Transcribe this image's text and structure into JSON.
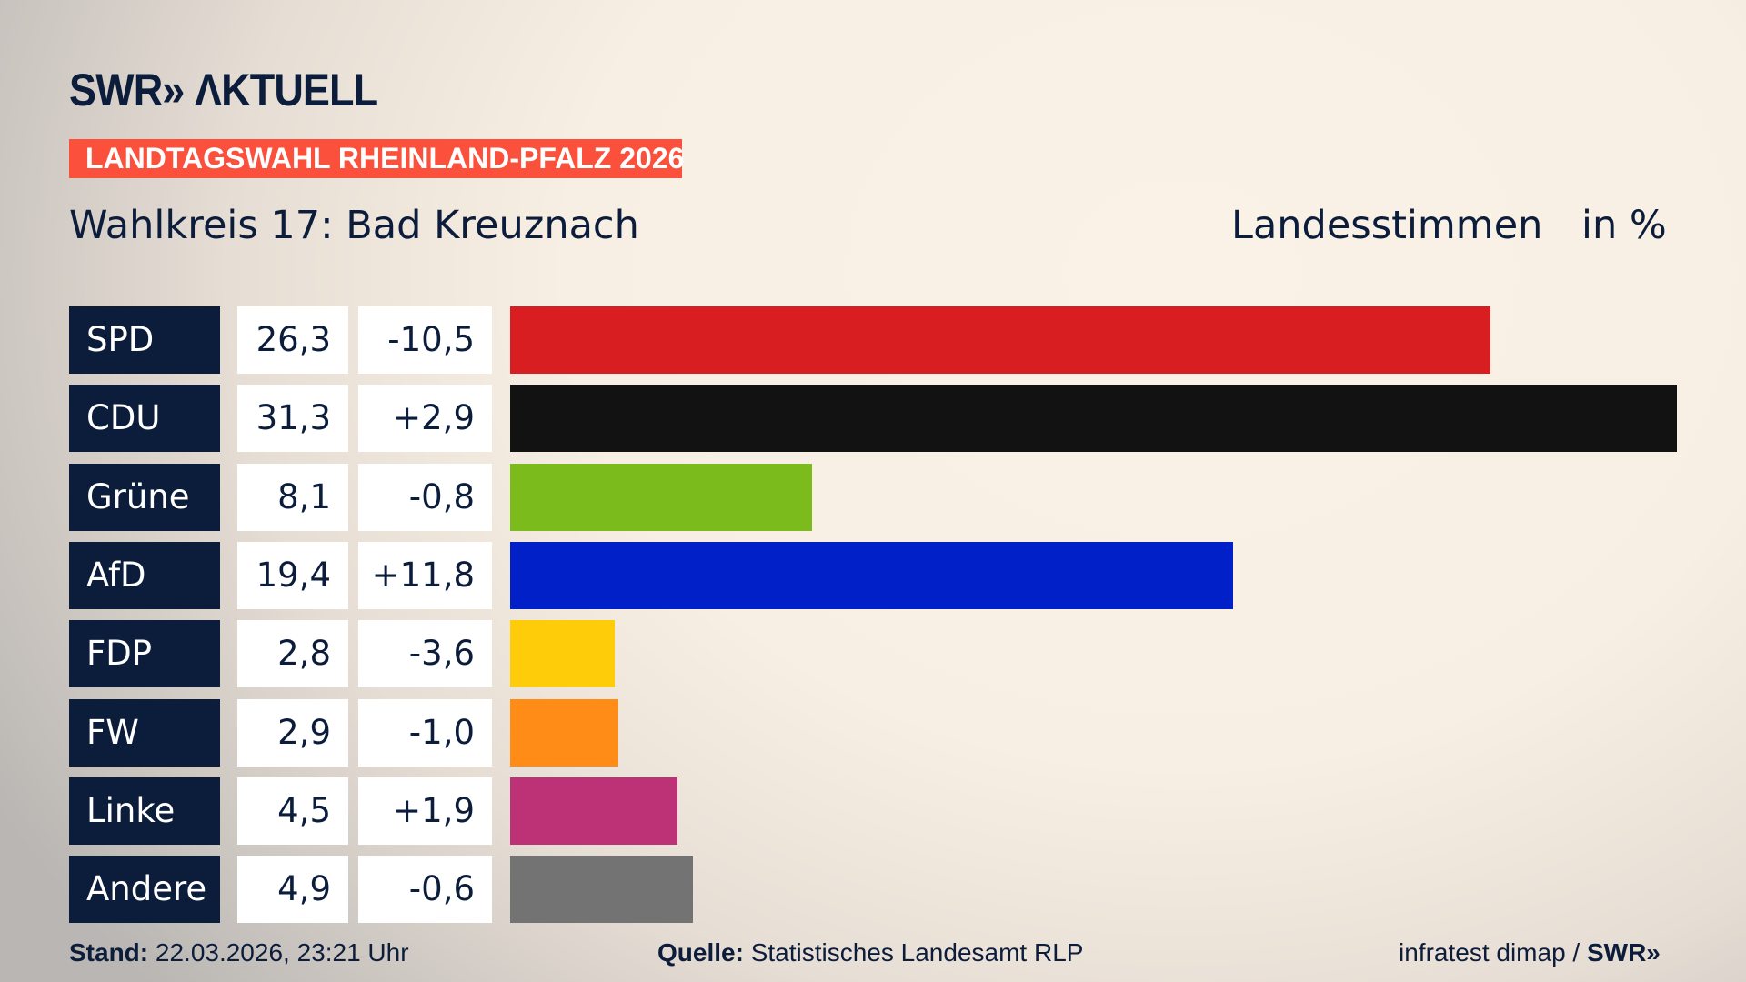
{
  "brand": {
    "logo": "SWR» AKTUELL",
    "footer_logo": "SWR»"
  },
  "badge": "LANDTAGSWAHL RHEINLAND-PFALZ 2026",
  "title": "Wahlkreis 17: Bad Kreuznach",
  "subtitle": "Landesstimmen",
  "unit": "in %",
  "chart_data": {
    "type": "bar",
    "orientation": "horizontal",
    "xlim": [
      0,
      31.3
    ],
    "categories": [
      "SPD",
      "CDU",
      "Grüne",
      "AfD",
      "FDP",
      "FW",
      "Linke",
      "Andere"
    ],
    "values": [
      26.3,
      31.3,
      8.1,
      19.4,
      2.8,
      2.9,
      4.5,
      4.9
    ],
    "value_labels": [
      "26,3",
      "31,3",
      "8,1",
      "19,4",
      "2,8",
      "2,9",
      "4,5",
      "4,9"
    ],
    "diff_labels": [
      "-10,5",
      "+2,9",
      "-0,8",
      "+11,8",
      "-3,6",
      "-1,0",
      "+1,9",
      "-0,6"
    ],
    "colors": [
      "#d81e20",
      "#121212",
      "#7bbc1c",
      "#0220c8",
      "#ffcc0a",
      "#ff8c16",
      "#bd3176",
      "#737373"
    ]
  },
  "footer": {
    "stand_label": "Stand:",
    "stand": "22.03.2026, 23:21 Uhr",
    "quelle_label": "Quelle:",
    "quelle": "Statistisches Landesamt RLP",
    "credit": "infratest dimap /"
  }
}
